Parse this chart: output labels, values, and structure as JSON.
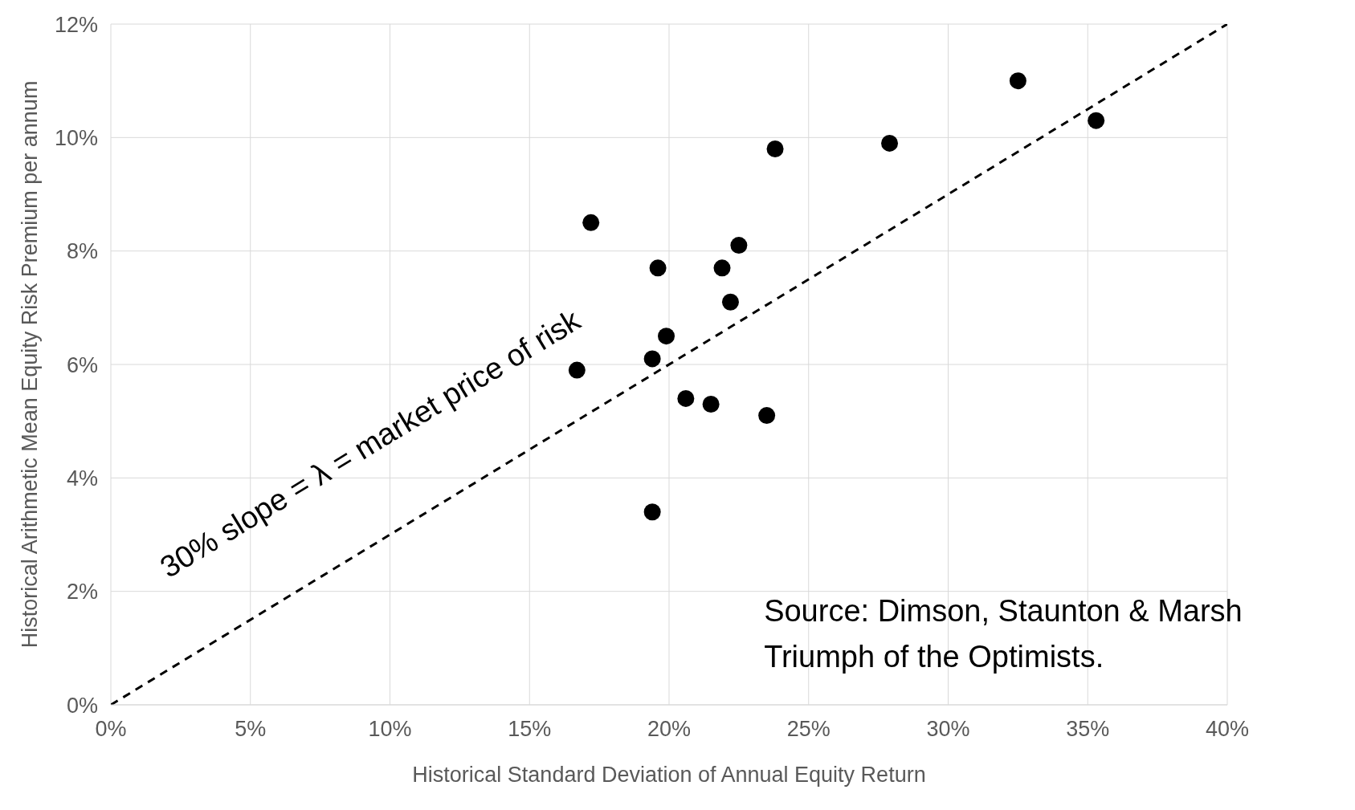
{
  "chart_data": {
    "type": "scatter",
    "xlabel": "Historical Standard Deviation of Annual Equity Return",
    "ylabel": "Historical Arithmetic Mean Equity Risk Premium per annum",
    "xlim": [
      0,
      40
    ],
    "xticks": [
      {
        "value": 0,
        "label": "0%"
      },
      {
        "value": 5,
        "label": "5%"
      },
      {
        "value": 10,
        "label": "10%"
      },
      {
        "value": 15,
        "label": "15%"
      },
      {
        "value": 20,
        "label": "20%"
      },
      {
        "value": 25,
        "label": "25%"
      },
      {
        "value": 30,
        "label": "30%"
      },
      {
        "value": 35,
        "label": "35%"
      },
      {
        "value": 40,
        "label": "40%"
      }
    ],
    "ylim": [
      0,
      12
    ],
    "yticks": [
      {
        "value": 0,
        "label": "0%"
      },
      {
        "value": 2,
        "label": "2%"
      },
      {
        "value": 4,
        "label": "4%"
      },
      {
        "value": 6,
        "label": "6%"
      },
      {
        "value": 8,
        "label": "8%"
      },
      {
        "value": 10,
        "label": "10%"
      },
      {
        "value": 12,
        "label": "12%"
      }
    ],
    "grid": true,
    "legend": false,
    "series": [
      {
        "type": "scatter",
        "color": "#000000",
        "marker": "circle",
        "x": [
          17.2,
          19.6,
          21.9,
          22.5,
          22.2,
          19.9,
          19.4,
          16.7,
          20.6,
          21.5,
          23.5,
          19.4,
          23.8,
          27.9,
          32.5,
          35.3
        ],
        "values": [
          8.5,
          7.7,
          7.7,
          8.1,
          7.1,
          6.5,
          6.1,
          5.9,
          5.4,
          5.3,
          5.1,
          3.4,
          9.8,
          9.9,
          11.0,
          10.3
        ]
      },
      {
        "type": "line",
        "color": "#000000",
        "marker": "none",
        "line_style": "dashed",
        "x": [
          0,
          40
        ],
        "values": [
          0,
          12
        ]
      }
    ],
    "annotations": [
      "30% slope = λ = market price of risk",
      "Source: Dimson, Staunton & Marsh\nTriumph of the Optimists."
    ]
  }
}
